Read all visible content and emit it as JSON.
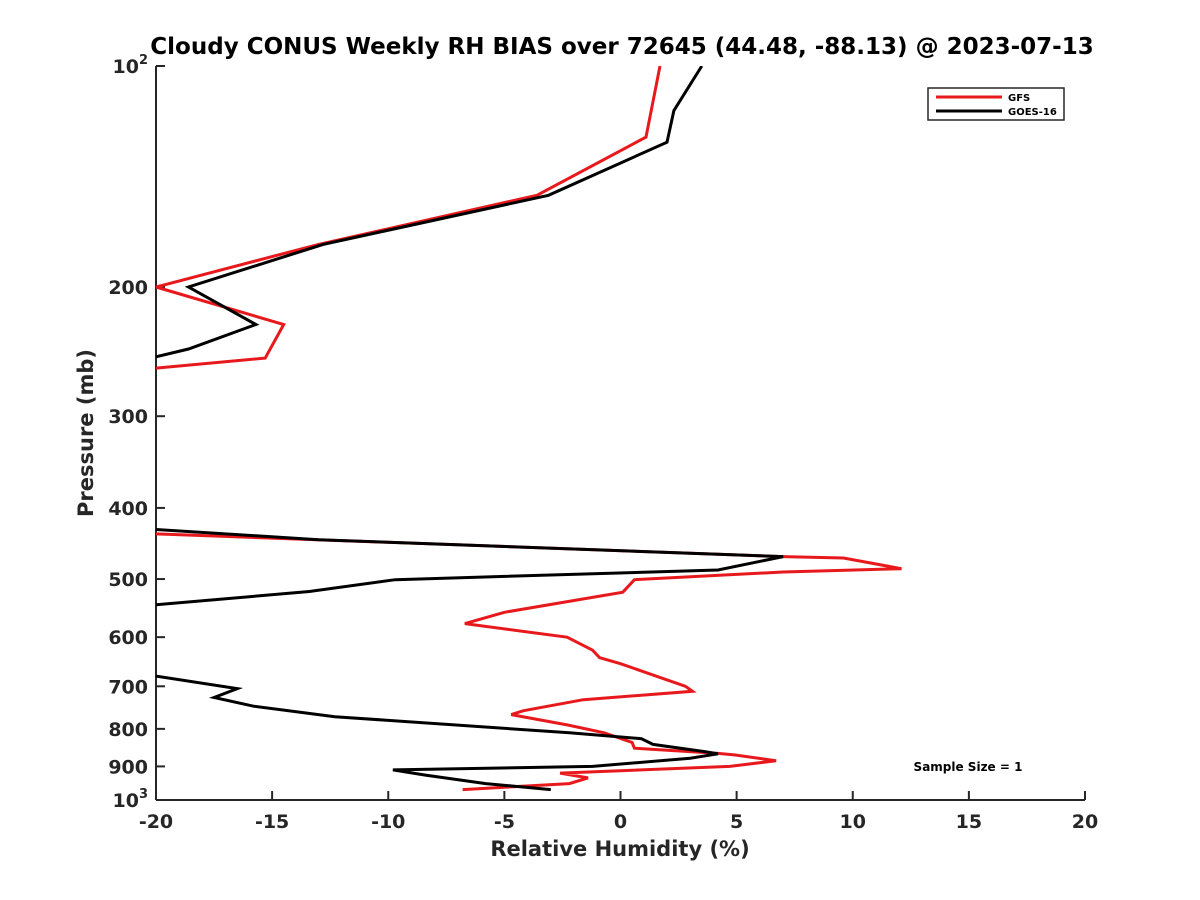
{
  "chart_data": {
    "type": "line",
    "title": "Cloudy CONUS Weekly RH BIAS over 72645 (44.48, -88.13) @ 2023-07-13",
    "xlabel": "Relative Humidity (%)",
    "ylabel": "Pressure (mb)",
    "xlim": [
      -20,
      20
    ],
    "ylim": [
      100,
      1000
    ],
    "yscale": "log",
    "y_reversed": true,
    "grid": false,
    "legend_position": "top-right",
    "annotation": "Sample Size = 1",
    "x_ticks": [
      "-20",
      "-15",
      "-10",
      "-5",
      "0",
      "5",
      "10",
      "15",
      "20"
    ],
    "x_tick_values": [
      -20,
      -15,
      -10,
      -5,
      0,
      5,
      10,
      15,
      20
    ],
    "y_ticks": [
      {
        "value": 100,
        "base": "10",
        "exp": "2"
      },
      {
        "value": 200,
        "label": "200"
      },
      {
        "value": 300,
        "label": "300"
      },
      {
        "value": 400,
        "label": "400"
      },
      {
        "value": 500,
        "label": "500"
      },
      {
        "value": 600,
        "label": "600"
      },
      {
        "value": 700,
        "label": "700"
      },
      {
        "value": 800,
        "label": "800"
      },
      {
        "value": 900,
        "label": "900"
      },
      {
        "value": 1000,
        "base": "10",
        "exp": "3"
      }
    ],
    "series": [
      {
        "name": "GFS",
        "color": "#e8191c",
        "segments": [
          [
            [
              1.7,
              100
            ],
            [
              1.1,
              125
            ],
            [
              -3.6,
              150
            ],
            [
              -13,
              175
            ],
            [
              -20,
              200
            ],
            [
              -14.5,
              225
            ],
            [
              -15.3,
              250
            ],
            [
              -20,
              258
            ]
          ],
          [
            [
              -20,
              434
            ],
            [
              7,
              466
            ],
            [
              9.6,
              468
            ],
            [
              12.1,
              484
            ],
            [
              7,
              489
            ],
            [
              0.6,
              501
            ],
            [
              0.1,
              521
            ],
            [
              -5,
              555
            ],
            [
              -6.7,
              575
            ],
            [
              -2.3,
              600
            ],
            [
              -1.2,
              625
            ],
            [
              -0.9,
              640
            ],
            [
              0,
              652
            ],
            [
              2.8,
              700
            ],
            [
              3.1,
              711
            ],
            [
              -1.6,
              730
            ],
            [
              -4.2,
              756
            ],
            [
              -4.7,
              765
            ],
            [
              -2.3,
              790
            ],
            [
              -0.7,
              810
            ],
            [
              0.5,
              835
            ],
            [
              0.6,
              850
            ],
            [
              4.2,
              864
            ],
            [
              4.9,
              868
            ],
            [
              6.7,
              884
            ],
            [
              4.7,
              900
            ],
            [
              -2.6,
              919
            ],
            [
              -1.4,
              933
            ],
            [
              -2.2,
              950
            ],
            [
              -6.8,
              968
            ]
          ]
        ]
      },
      {
        "name": "GOES-16",
        "color": "#000000",
        "segments": [
          [
            [
              3.5,
              100
            ],
            [
              2.3,
              115
            ],
            [
              2,
              127
            ],
            [
              -3.1,
              150
            ],
            [
              -12.8,
              175
            ],
            [
              -18.6,
              200
            ],
            [
              -15.7,
              225
            ],
            [
              -18.6,
              243
            ],
            [
              -20,
              249
            ]
          ],
          [
            [
              -20,
              428
            ],
            [
              -13,
              442
            ],
            [
              7,
              466
            ],
            [
              4.2,
              486
            ],
            [
              -9.7,
              501
            ],
            [
              -13.4,
              520
            ],
            [
              -20,
              542
            ]
          ],
          [
            [
              -20,
              678
            ],
            [
              -16.5,
              705
            ],
            [
              -17.5,
              725
            ],
            [
              -15.8,
              745
            ],
            [
              -12.3,
              770
            ],
            [
              -2.2,
              810
            ],
            [
              0.9,
              825
            ],
            [
              1.4,
              840
            ],
            [
              3.7,
              860
            ],
            [
              4.2,
              865
            ],
            [
              3,
              877
            ],
            [
              -1.2,
              900
            ],
            [
              -9.8,
              910
            ],
            [
              -8.4,
              925
            ],
            [
              -5.8,
              950
            ],
            [
              -3,
              968
            ]
          ]
        ]
      }
    ]
  }
}
